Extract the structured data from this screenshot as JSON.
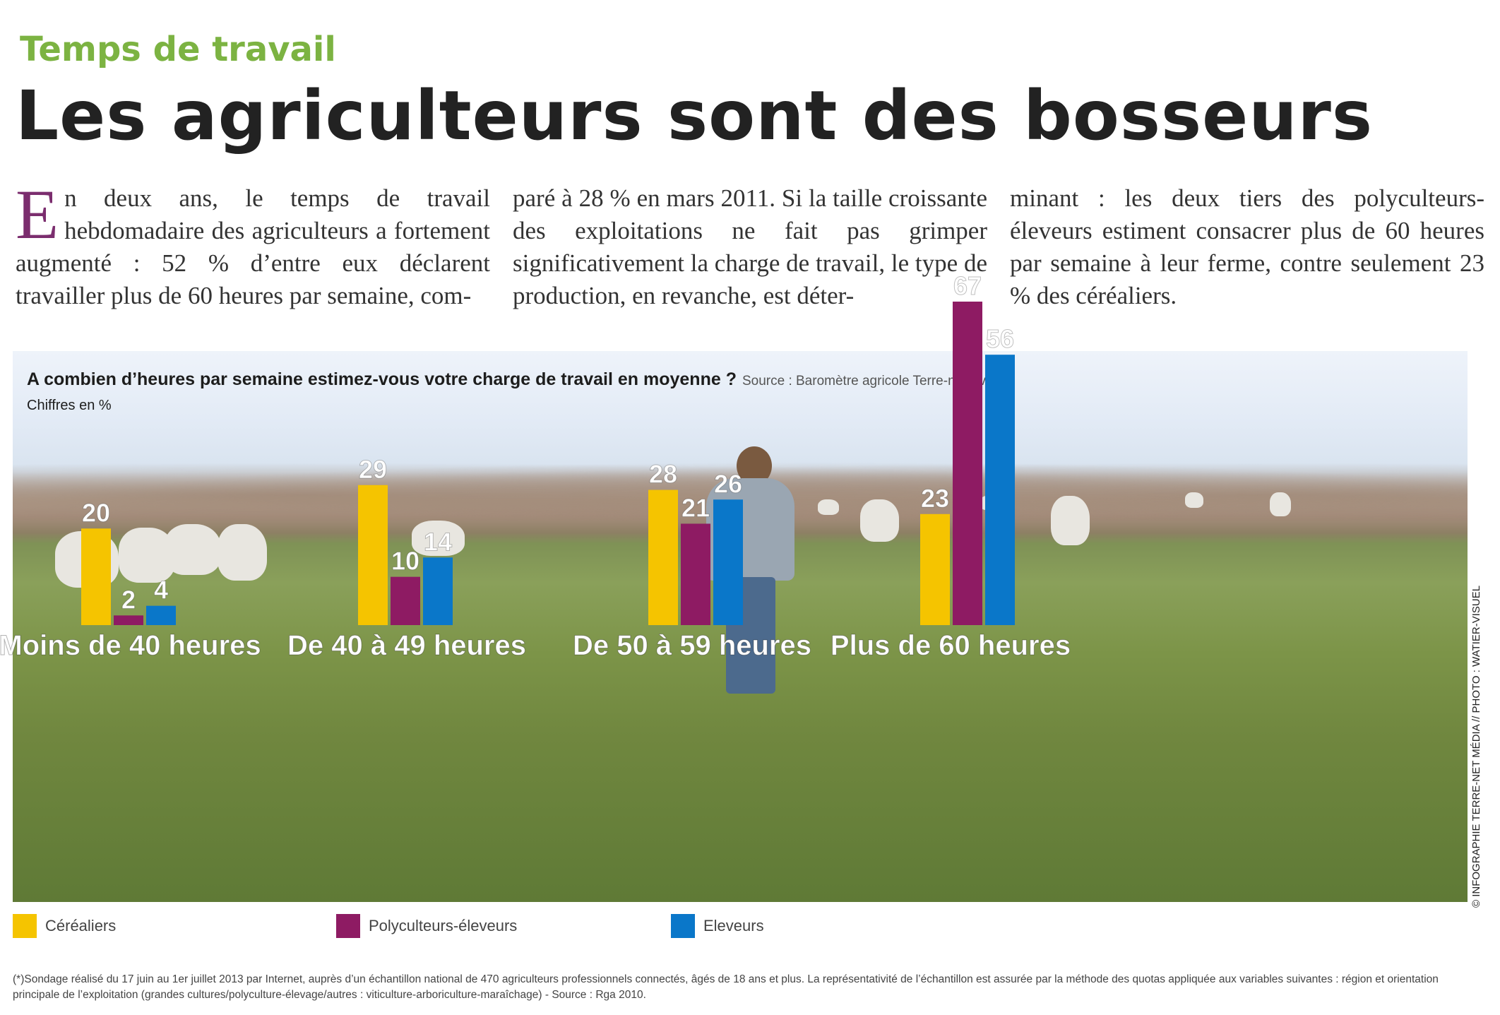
{
  "article": {
    "kicker": "Temps de travail",
    "headline": "Les agriculteurs sont des bosseurs",
    "dropcap": "E",
    "col1": "n deux ans, le temps de travail hebdomadaire des agriculteurs a fortement augmenté : 52 % d’entre eux déclarent travailler plus de 60 heures par semaine, com-",
    "col2": "paré à 28 % en mars 2011. Si la taille croissante des exploitations ne fait pas grimper significativement la charge de travail, le type de production, en revanche, est déter-",
    "col3": "minant : les deux tiers des polyculteurs-éleveurs estiment consacrer plus de 60 heures par semaine à leur ferme, contre seulement 23 % des céréaliers."
  },
  "chart_data": {
    "type": "bar",
    "title": "A combien d’heures par semaine estimez-vous votre charge de travail en moyenne ?",
    "source": "Source : Baromètre agricole Terre-net Bva*",
    "unit_note": "Chiffres en %",
    "categories": [
      "Moins de 40 heures",
      "De 40 à 49 heures",
      "De 50 à 59 heures",
      "Plus de 60 heures"
    ],
    "series": [
      {
        "name": "Céréaliers",
        "color": "#f5c400",
        "values": [
          20,
          29,
          28,
          23
        ]
      },
      {
        "name": "Polyculteurs-éleveurs",
        "color": "#8e1b63",
        "values": [
          2,
          10,
          21,
          67
        ]
      },
      {
        "name": "Eleveurs",
        "color": "#0a77c9",
        "values": [
          4,
          14,
          26,
          56
        ]
      }
    ],
    "ylim": [
      0,
      67
    ],
    "legend_position": "bottom"
  },
  "credit": "© INFOGRAPHIE TERRE-NET MÉDIA // PHOTO : WATIER-VISUEL",
  "footnote": "(*)Sondage réalisé du 17 juin au 1er juillet 2013 par Internet, auprès d’un échantillon national de 470 agriculteurs professionnels connectés, âgés de 18 ans et plus. La représentativité de l’échantillon est assurée par la méthode des quotas appliquée aux variables suivantes : région et orientation principale de l’exploitation (grandes cultures/polyculture-élevage/autres : viticulture-arboriculture-maraîchage) - Source : Rga 2010."
}
